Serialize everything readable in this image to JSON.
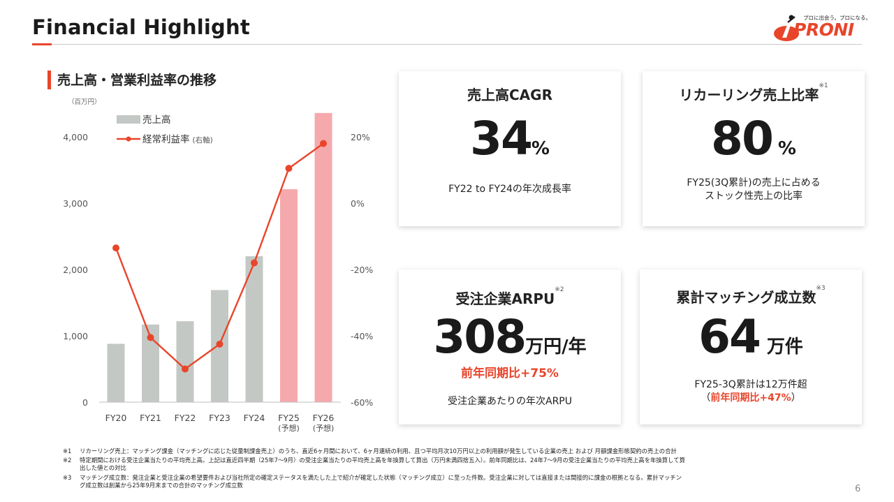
{
  "header": {
    "title": "Financial Highlight",
    "logo_tagline": "プロに出会う。プロになる。",
    "logo_word": "PRONI"
  },
  "section": {
    "title": "売上高・営業利益率の推移",
    "unit": "（百万円）"
  },
  "chart_data": {
    "type": "bar",
    "categories": [
      "FY20",
      "FY21",
      "FY22",
      "FY23",
      "FY24",
      "FY25",
      "FY26"
    ],
    "category_sublabels": [
      "",
      "",
      "",
      "",
      "",
      "(予想)",
      "(予想)"
    ],
    "series": [
      {
        "name": "売上高",
        "type": "bar",
        "axis": "left",
        "values": [
          880,
          1170,
          1220,
          1690,
          2200,
          3210,
          4360
        ],
        "colors": [
          "#c4c8c4",
          "#c4c8c4",
          "#c4c8c4",
          "#c4c8c4",
          "#c4c8c4",
          "#f6a9ad",
          "#f6a9ad"
        ]
      },
      {
        "name": "経常利益率",
        "name_suffix": "(右軸)",
        "type": "line",
        "axis": "right",
        "color": "#e8452b",
        "values": [
          -13.5,
          -40.5,
          -50,
          -42.5,
          -18,
          10.5,
          18
        ]
      }
    ],
    "y_left": {
      "min": 0,
      "max": 4000,
      "ticks": [
        0,
        1000,
        2000,
        3000,
        4000
      ],
      "tick_labels": [
        "0",
        "1,000",
        "2,000",
        "3,000",
        "4,000"
      ]
    },
    "y_right": {
      "min": -60,
      "max": 20,
      "ticks": [
        -60,
        -40,
        -20,
        0,
        20
      ],
      "tick_labels": [
        "-60%",
        "-40%",
        "-20%",
        "0%",
        "20%"
      ]
    },
    "legend_position": "top-left",
    "grid": false
  },
  "cards": {
    "cagr": {
      "title": "売上高CAGR",
      "value": "34",
      "unit": "%",
      "desc": "FY22 to FY24の年次成長率"
    },
    "recurring": {
      "title": "リカーリング売上比率",
      "note": "※1",
      "value": "80",
      "unit": "%",
      "desc1": "FY25(3Q累計)の売上に占める",
      "desc2": "ストック性売上の比率"
    },
    "arpu": {
      "title": "受注企業ARPU",
      "note": "※2",
      "value": "308",
      "unit": "万円/年",
      "highlight": "前年同期比+75%",
      "desc": "受注企業あたりの年次ARPU"
    },
    "matching": {
      "title": "累計マッチング成立数",
      "note": "※3",
      "value": "64",
      "unit": "万件",
      "desc1": "FY25-3Q累計は12万件超",
      "desc2_open": "（",
      "highlight": "前年同期比+47%",
      "desc2_close": "）"
    }
  },
  "footnotes": [
    {
      "mark": "※1",
      "text": "リカーリング売上：マッチング課金（マッチングに応じた従量制課金売上）のうち、直近6ヶ月間において、6ヶ月連続の利用、且つ平均月次10万円以上の利用額が発生している企業の売上 および 月額課金形態契約の売上の合計"
    },
    {
      "mark": "※2",
      "text": "特定期間における受注企業当たりの平均売上高。上記は直近四半期（25年7〜9月）の受注企業当たりの平均売上高を年換算して算出（万円未満四捨五入）。前年同期比は、24年7〜9月の受注企業当たりの平均売上高を年換算して算",
      "text2": "出した値との対比"
    },
    {
      "mark": "※3",
      "text": "マッチング成立数：発注企業と受注企業の希望要件および当社所定の確定ステータスを満たした上で紹介が確定した状態（マッチング成立）に至った件数。受注企業に対しては直接または間接的に課金の根拠となる。累計マッチン",
      "text2": "グ成立数は創業から25年9月末までの合計のマッチング成立数"
    }
  ],
  "page_number": "6",
  "colors": {
    "accent": "#e8452b",
    "bar_actual": "#c4c8c4",
    "bar_forecast": "#f6a9ad"
  }
}
